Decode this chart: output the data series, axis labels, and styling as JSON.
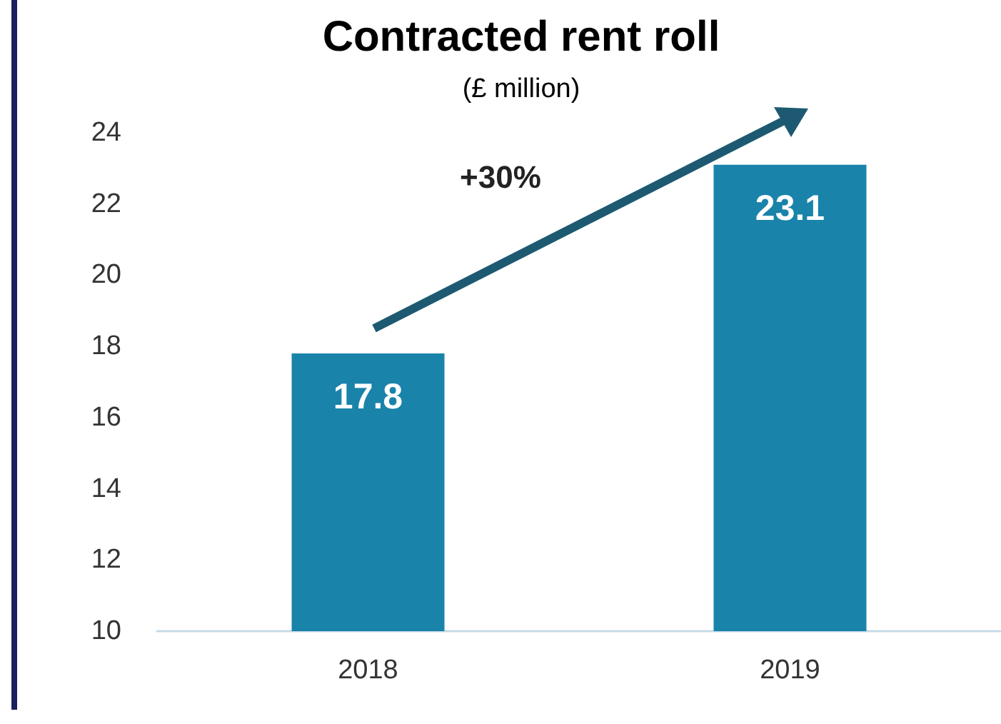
{
  "chart_data": {
    "type": "bar",
    "title": "Contracted rent roll",
    "subtitle": "(£ million)",
    "categories": [
      "2018",
      "2019"
    ],
    "values": [
      17.8,
      23.1
    ],
    "color": "#1983aa",
    "ylim": [
      10,
      24
    ],
    "yticks": [
      10,
      12,
      14,
      16,
      18,
      20,
      22,
      24
    ],
    "grid": false,
    "data_labels": true,
    "annotations": [
      "+30%"
    ]
  }
}
